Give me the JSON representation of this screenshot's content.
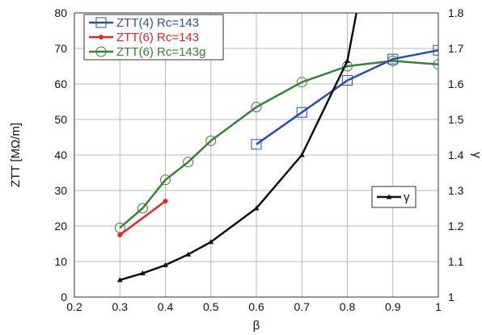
{
  "chart_data": {
    "type": "line",
    "xlabel": "β",
    "ylabel": "ZTT [MΩ/m]",
    "y2label": "γ",
    "xlim": [
      0.2,
      1
    ],
    "ylim": [
      0,
      80
    ],
    "y2lim": [
      1,
      1.8
    ],
    "xticks": [
      "0.2",
      "0.3",
      "0.4",
      "0.5",
      "0.6",
      "0.7",
      "0.8",
      "0.9",
      "1"
    ],
    "yticks": [
      "0",
      "10",
      "20",
      "30",
      "40",
      "50",
      "60",
      "70",
      "80"
    ],
    "y2ticks": [
      "1",
      "1.1",
      "1.2",
      "1.3",
      "1.4",
      "1.5",
      "1.6",
      "1.7",
      "1.8"
    ],
    "grid": true,
    "legend_placement": "top-left",
    "series": [
      {
        "name": "ZTT(4) Rc=143",
        "axis": "left",
        "color": "#2e4fa8",
        "marker": "square",
        "points": [
          [
            0.6,
            43
          ],
          [
            0.7,
            52
          ],
          [
            0.8,
            61
          ],
          [
            0.9,
            67
          ],
          [
            1.0,
            69.5
          ]
        ]
      },
      {
        "name": "ZTT(6) Rc=143",
        "axis": "left",
        "color": "#e0282a",
        "marker": "dot",
        "points": [
          [
            0.3,
            17.5
          ],
          [
            0.4,
            27
          ]
        ]
      },
      {
        "name": "ZTT(6) Rc=143g",
        "axis": "left",
        "color": "#3e7d3a",
        "marker": "circle",
        "points": [
          [
            0.3,
            19.5
          ],
          [
            0.35,
            25
          ],
          [
            0.4,
            33
          ],
          [
            0.45,
            38
          ],
          [
            0.5,
            44
          ],
          [
            0.6,
            53.5
          ],
          [
            0.7,
            60.5
          ],
          [
            0.8,
            65
          ],
          [
            0.9,
            66.5
          ],
          [
            1.0,
            65.5
          ]
        ]
      },
      {
        "name": "γ",
        "axis": "right",
        "color": "#111111",
        "marker": "triangle",
        "points": [
          [
            0.3,
            1.048
          ],
          [
            0.35,
            1.067
          ],
          [
            0.4,
            1.09
          ],
          [
            0.45,
            1.12
          ],
          [
            0.5,
            1.155
          ],
          [
            0.6,
            1.25
          ],
          [
            0.7,
            1.4
          ],
          [
            0.8,
            1.665
          ],
          [
            0.82,
            1.8
          ]
        ]
      }
    ],
    "legend_entries": [
      "ZTT(4) Rc=143",
      "ZTT(6) Rc=143",
      "ZTT(6) Rc=143g"
    ],
    "gamma_legend": "γ"
  }
}
